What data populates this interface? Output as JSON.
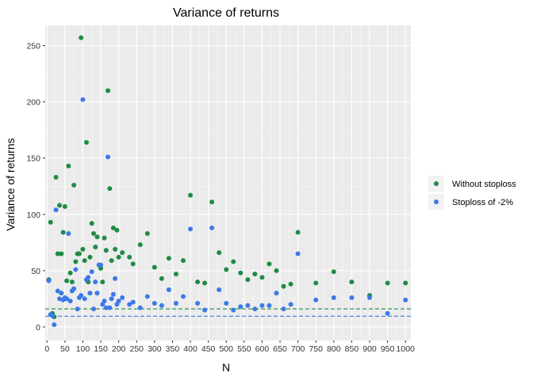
{
  "chart_data": {
    "type": "scatter",
    "title": "Variance of returns",
    "xlabel": "N",
    "ylabel": "Variance of returns",
    "xlim": [
      -5,
      1015
    ],
    "ylim": [
      -12,
      268
    ],
    "x_ticks": [
      0,
      50,
      100,
      150,
      200,
      250,
      300,
      350,
      400,
      450,
      500,
      550,
      600,
      650,
      700,
      750,
      800,
      850,
      900,
      950,
      1000
    ],
    "x_tick_labels": [
      "0",
      "50",
      "100",
      "150",
      "200",
      "250",
      "300",
      "350",
      "400",
      "450",
      "500",
      "550",
      "600",
      "650",
      "700",
      "750",
      "800",
      "850",
      "900",
      "950",
      "1000"
    ],
    "y_ticks": [
      0,
      50,
      100,
      150,
      200,
      250
    ],
    "y_tick_labels": [
      "0",
      "50",
      "100",
      "150",
      "200",
      "250"
    ],
    "grid": true,
    "legend_position": "right",
    "hlines": [
      {
        "series": "Without stoploss",
        "y": 16,
        "style": "dashed"
      },
      {
        "series": "Stoploss of -2%",
        "y": 9.5,
        "style": "dashed"
      }
    ],
    "series": [
      {
        "name": "Without stoploss",
        "color": "#1E8B45",
        "points": [
          [
            5,
            42
          ],
          [
            10,
            93
          ],
          [
            15,
            12
          ],
          [
            20,
            9
          ],
          [
            25,
            133
          ],
          [
            30,
            65
          ],
          [
            35,
            108
          ],
          [
            40,
            65
          ],
          [
            45,
            84
          ],
          [
            50,
            107
          ],
          [
            55,
            41
          ],
          [
            60,
            143
          ],
          [
            65,
            48
          ],
          [
            70,
            40
          ],
          [
            75,
            126
          ],
          [
            80,
            58
          ],
          [
            85,
            65
          ],
          [
            90,
            65
          ],
          [
            95,
            257
          ],
          [
            100,
            69
          ],
          [
            105,
            59
          ],
          [
            110,
            164
          ],
          [
            115,
            40
          ],
          [
            120,
            62
          ],
          [
            125,
            92
          ],
          [
            130,
            83
          ],
          [
            135,
            71
          ],
          [
            140,
            80
          ],
          [
            145,
            55
          ],
          [
            150,
            52
          ],
          [
            155,
            40
          ],
          [
            160,
            79
          ],
          [
            165,
            68
          ],
          [
            170,
            210
          ],
          [
            175,
            123
          ],
          [
            180,
            59
          ],
          [
            185,
            88
          ],
          [
            190,
            69
          ],
          [
            195,
            86
          ],
          [
            200,
            62
          ],
          [
            210,
            66
          ],
          [
            230,
            62
          ],
          [
            240,
            56
          ],
          [
            260,
            73
          ],
          [
            280,
            83
          ],
          [
            300,
            53
          ],
          [
            320,
            43
          ],
          [
            340,
            61
          ],
          [
            360,
            47
          ],
          [
            380,
            59
          ],
          [
            400,
            117
          ],
          [
            420,
            40
          ],
          [
            440,
            39
          ],
          [
            460,
            111
          ],
          [
            480,
            66
          ],
          [
            500,
            51
          ],
          [
            520,
            58
          ],
          [
            540,
            48
          ],
          [
            560,
            42
          ],
          [
            580,
            47
          ],
          [
            600,
            44
          ],
          [
            620,
            56
          ],
          [
            640,
            50
          ],
          [
            660,
            36
          ],
          [
            680,
            38
          ],
          [
            700,
            84
          ],
          [
            750,
            39
          ],
          [
            800,
            49
          ],
          [
            850,
            40
          ],
          [
            900,
            28
          ],
          [
            950,
            39
          ],
          [
            1000,
            39
          ]
        ]
      },
      {
        "name": "Stoploss of -2%",
        "color": "#3B79E8",
        "points": [
          [
            5,
            41
          ],
          [
            10,
            11
          ],
          [
            15,
            10
          ],
          [
            20,
            2
          ],
          [
            25,
            104
          ],
          [
            30,
            32
          ],
          [
            35,
            25
          ],
          [
            40,
            30
          ],
          [
            45,
            24
          ],
          [
            50,
            26
          ],
          [
            55,
            25
          ],
          [
            60,
            83
          ],
          [
            65,
            23
          ],
          [
            70,
            32
          ],
          [
            75,
            34
          ],
          [
            80,
            51
          ],
          [
            85,
            16
          ],
          [
            90,
            26
          ],
          [
            95,
            28
          ],
          [
            100,
            202
          ],
          [
            105,
            25
          ],
          [
            110,
            42
          ],
          [
            115,
            44
          ],
          [
            120,
            30
          ],
          [
            125,
            49
          ],
          [
            130,
            16
          ],
          [
            135,
            40
          ],
          [
            140,
            30
          ],
          [
            145,
            55
          ],
          [
            150,
            55
          ],
          [
            155,
            20
          ],
          [
            160,
            23
          ],
          [
            165,
            17
          ],
          [
            170,
            151
          ],
          [
            175,
            17
          ],
          [
            180,
            25
          ],
          [
            185,
            29
          ],
          [
            190,
            43
          ],
          [
            195,
            20
          ],
          [
            200,
            23
          ],
          [
            210,
            26
          ],
          [
            230,
            20
          ],
          [
            240,
            22
          ],
          [
            260,
            17
          ],
          [
            280,
            27
          ],
          [
            300,
            21
          ],
          [
            320,
            19
          ],
          [
            340,
            33
          ],
          [
            360,
            21
          ],
          [
            380,
            27
          ],
          [
            400,
            87
          ],
          [
            420,
            21
          ],
          [
            440,
            15
          ],
          [
            460,
            88
          ],
          [
            480,
            33
          ],
          [
            500,
            21
          ],
          [
            520,
            15
          ],
          [
            540,
            18
          ],
          [
            560,
            19
          ],
          [
            580,
            16
          ],
          [
            600,
            19
          ],
          [
            620,
            19
          ],
          [
            640,
            30
          ],
          [
            660,
            16
          ],
          [
            680,
            20
          ],
          [
            700,
            65
          ],
          [
            750,
            24
          ],
          [
            800,
            26
          ],
          [
            850,
            26
          ],
          [
            900,
            26
          ],
          [
            950,
            12
          ],
          [
            1000,
            24
          ]
        ]
      }
    ]
  }
}
